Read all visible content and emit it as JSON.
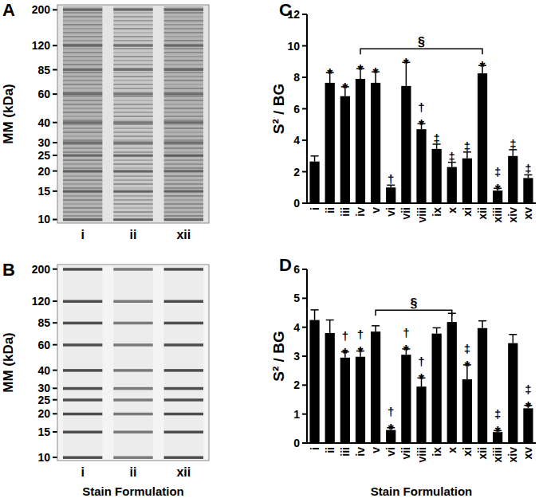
{
  "chart_data": [
    {
      "type": "gel",
      "title": "A",
      "ylabel": "MM (kDa)",
      "categories": [
        "i",
        "ii",
        "xii"
      ],
      "log": "y",
      "ylim": [
        9.5,
        215
      ],
      "yticks": [
        200,
        120,
        85,
        60,
        40,
        30,
        25,
        20,
        15,
        10
      ]
    },
    {
      "type": "gel",
      "title": "B",
      "ylabel": "MM (kDa)",
      "xlabel": "Stain Formulation",
      "categories": [
        "i",
        "ii",
        "xii"
      ],
      "log": "y",
      "ylim": [
        9.5,
        215
      ],
      "yticks": [
        200,
        120,
        85,
        60,
        40,
        30,
        25,
        20,
        15,
        10
      ]
    },
    {
      "type": "bar",
      "title": "C",
      "ylabel": "S² / BG",
      "color": "#000000",
      "categories": [
        "i",
        "ii",
        "iii",
        "iv",
        "v",
        "vi",
        "vii",
        "viii",
        "ix",
        "x",
        "xi",
        "xii",
        "xiii",
        "xiv",
        "xv"
      ],
      "values": [
        2.65,
        7.65,
        6.8,
        7.9,
        7.65,
        1.0,
        7.45,
        4.7,
        3.45,
        2.3,
        2.85,
        8.25,
        0.8,
        3.0,
        1.6
      ],
      "errors": [
        0.35,
        0.65,
        0.6,
        0.65,
        0.7,
        0.15,
        1.5,
        0.35,
        0.3,
        0.3,
        0.4,
        0.5,
        0.15,
        0.4,
        0.2
      ],
      "annotations": [
        [],
        [
          "*"
        ],
        [
          "*"
        ],
        [
          "*"
        ],
        [
          "*"
        ],
        [
          "†"
        ],
        [
          "*"
        ],
        [
          "†",
          "*"
        ],
        [
          "‡"
        ],
        [
          "‡"
        ],
        [
          "‡"
        ],
        [
          "*"
        ],
        [
          "‡",
          "*"
        ],
        [
          "‡"
        ],
        [
          "‡"
        ]
      ],
      "bracket": {
        "from": "iv",
        "to": "xii",
        "label": "§"
      },
      "ylim": [
        0,
        12
      ],
      "yticks": [
        0,
        2,
        4,
        6,
        8,
        10,
        12
      ]
    },
    {
      "type": "bar",
      "title": "D",
      "ylabel": "S² / BG",
      "xlabel": "Stain Formulation",
      "color": "#000000",
      "categories": [
        "i",
        "ii",
        "iii",
        "iv",
        "v",
        "vi",
        "vii",
        "viii",
        "ix",
        "x",
        "xi",
        "xii",
        "xiii",
        "xiv",
        "xv"
      ],
      "values": [
        4.25,
        3.8,
        2.95,
        2.98,
        3.85,
        0.45,
        3.05,
        1.95,
        3.78,
        4.18,
        2.2,
        3.97,
        0.38,
        3.45,
        1.2
      ],
      "errors": [
        0.35,
        0.45,
        0.2,
        0.2,
        0.2,
        0.08,
        0.2,
        0.3,
        0.2,
        0.3,
        0.5,
        0.25,
        0.05,
        0.3,
        0.1
      ],
      "annotations": [
        [],
        [],
        [
          "†",
          "*"
        ],
        [
          "†",
          "*"
        ],
        [],
        [
          "†",
          "*"
        ],
        [
          "†",
          "*"
        ],
        [
          "†",
          "*"
        ],
        [],
        [],
        [
          "‡",
          "*"
        ],
        [],
        [
          "‡",
          "*"
        ],
        [],
        [
          "‡",
          "*"
        ]
      ],
      "bracket": {
        "from": "v",
        "to": "x",
        "label": "§"
      },
      "ylim": [
        0,
        6
      ],
      "yticks": [
        0,
        1,
        2,
        3,
        4,
        5,
        6
      ]
    }
  ]
}
